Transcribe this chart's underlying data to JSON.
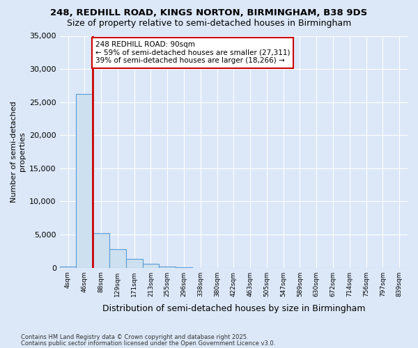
{
  "title1": "248, REDHILL ROAD, KINGS NORTON, BIRMINGHAM, B38 9DS",
  "title2": "Size of property relative to semi-detached houses in Birmingham",
  "xlabel": "Distribution of semi-detached houses by size in Birmingham",
  "ylabel": "Number of semi-detached\nproperties",
  "bins": [
    "4sqm",
    "46sqm",
    "88sqm",
    "129sqm",
    "171sqm",
    "213sqm",
    "255sqm",
    "296sqm",
    "338sqm",
    "380sqm",
    "422sqm",
    "463sqm",
    "505sqm",
    "547sqm",
    "589sqm",
    "630sqm",
    "672sqm",
    "714sqm",
    "756sqm",
    "797sqm",
    "839sqm"
  ],
  "values": [
    200,
    26200,
    5200,
    2800,
    1300,
    600,
    150,
    50,
    0,
    0,
    0,
    0,
    0,
    0,
    0,
    0,
    0,
    0,
    0,
    0,
    0
  ],
  "vline_x": 1.5,
  "annotation_title": "248 REDHILL ROAD: 90sqm",
  "annotation_line1": "← 59% of semi-detached houses are smaller (27,311)",
  "annotation_line2": "39% of semi-detached houses are larger (18,266) →",
  "bar_color": "#cce0f0",
  "bar_edge_color": "#5b9bd5",
  "vline_color": "#cc0000",
  "annotation_box_color": "#cc0000",
  "ylim": [
    0,
    35000
  ],
  "yticks": [
    0,
    5000,
    10000,
    15000,
    20000,
    25000,
    30000,
    35000
  ],
  "footer1": "Contains HM Land Registry data © Crown copyright and database right 2025.",
  "footer2": "Contains public sector information licensed under the Open Government Licence v3.0.",
  "bg_color": "#dce8f8"
}
